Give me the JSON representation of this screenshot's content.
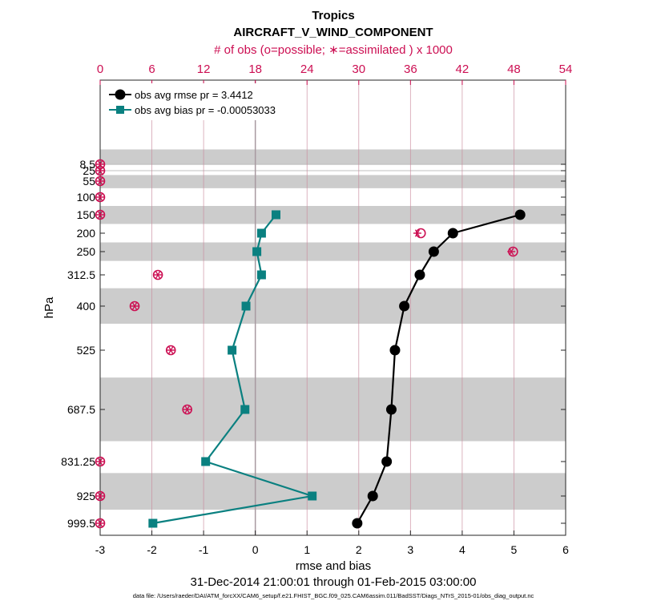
{
  "chart_data": {
    "type": "line",
    "title": "Tropics",
    "subtitle": "AIRCRAFT_V_WIND_COMPONENT",
    "top_axis_label": "# of obs (o=possible; ∗=assimilated ) x 1000",
    "top_ticks": [
      0,
      6,
      12,
      18,
      24,
      30,
      36,
      42,
      48,
      54
    ],
    "top_lim": [
      0,
      54
    ],
    "xlabel": "rmse and bias",
    "ylabel": "hPa",
    "xlim": [
      -3,
      6
    ],
    "x_ticks": [
      -3,
      -2,
      -1,
      0,
      1,
      2,
      3,
      4,
      5,
      6
    ],
    "y_scale": "categorical-pressure",
    "y_levels": [
      8.5,
      25,
      55,
      100,
      150,
      200,
      250,
      312.5,
      400,
      525,
      687.5,
      831.25,
      925,
      999.5
    ],
    "y_tick_labels": [
      "8.5",
      "25",
      "55",
      "100",
      "150",
      "200",
      "250",
      "312.5",
      "400",
      "525",
      "687.5",
      "831.25",
      "925",
      "999.5"
    ],
    "date_range": "31-Dec-2014 21:00:01 through 01-Feb-2015 03:00:00",
    "footer": "data file: /Users/raeder/DAI/ATM_forcXX/CAM6_setup/f.e21.FHIST_BGC.f09_025.CAM6assim.011/BadSST/Diags_NTrS_2015-01/obs_diag_output.nc",
    "legend_position": "top-left",
    "series": [
      {
        "name": "obs avg rmse pr = 3.4412",
        "color": "#000000",
        "marker": "circle",
        "points": [
          {
            "p": 150,
            "x": 5.12
          },
          {
            "p": 200,
            "x": 3.82
          },
          {
            "p": 250,
            "x": 3.45
          },
          {
            "p": 312.5,
            "x": 3.18
          },
          {
            "p": 400,
            "x": 2.88
          },
          {
            "p": 525,
            "x": 2.7
          },
          {
            "p": 687.5,
            "x": 2.63
          },
          {
            "p": 831.25,
            "x": 2.54
          },
          {
            "p": 925,
            "x": 2.27
          },
          {
            "p": 999.5,
            "x": 1.97
          }
        ]
      },
      {
        "name": "obs avg bias pr = -0.00053033",
        "color": "#0a8080",
        "marker": "square",
        "points": [
          {
            "p": 150,
            "x": 0.4
          },
          {
            "p": 200,
            "x": 0.12
          },
          {
            "p": 250,
            "x": 0.03
          },
          {
            "p": 312.5,
            "x": 0.12
          },
          {
            "p": 400,
            "x": -0.18
          },
          {
            "p": 525,
            "x": -0.45
          },
          {
            "p": 687.5,
            "x": -0.2
          },
          {
            "p": 831.25,
            "x": -0.96
          },
          {
            "p": 925,
            "x": 1.1
          },
          {
            "p": 999.5,
            "x": -1.98
          }
        ]
      }
    ],
    "obs_counts": {
      "color": "#cc0e52",
      "possible": [
        {
          "p": 8.5,
          "n": 0
        },
        {
          "p": 25,
          "n": 0
        },
        {
          "p": 55,
          "n": 0
        },
        {
          "p": 100,
          "n": 0
        },
        {
          "p": 150,
          "n": 0
        },
        {
          "p": 200,
          "n": 37.2
        },
        {
          "p": 250,
          "n": 47.9
        },
        {
          "p": 312.5,
          "n": 6.7
        },
        {
          "p": 400,
          "n": 4.0
        },
        {
          "p": 525,
          "n": 8.2
        },
        {
          "p": 687.5,
          "n": 10.1
        },
        {
          "p": 831.25,
          "n": 0
        },
        {
          "p": 925,
          "n": 0
        },
        {
          "p": 999.5,
          "n": 0
        }
      ],
      "assimilated": [
        {
          "p": 8.5,
          "n": 0
        },
        {
          "p": 25,
          "n": 0
        },
        {
          "p": 55,
          "n": 0
        },
        {
          "p": 100,
          "n": 0
        },
        {
          "p": 150,
          "n": 0
        },
        {
          "p": 200,
          "n": 36.8
        },
        {
          "p": 250,
          "n": 47.7
        },
        {
          "p": 312.5,
          "n": 6.7
        },
        {
          "p": 400,
          "n": 4.0
        },
        {
          "p": 525,
          "n": 8.2
        },
        {
          "p": 687.5,
          "n": 10.1
        },
        {
          "p": 831.25,
          "n": 0
        },
        {
          "p": 925,
          "n": 0
        },
        {
          "p": 999.5,
          "n": 0
        }
      ]
    },
    "pressure_bands_shaded": [
      [
        7,
        10
      ],
      [
        37.5,
        75
      ],
      [
        125,
        175
      ],
      [
        225,
        275
      ],
      [
        350,
        450
      ],
      [
        600,
        775
      ],
      [
        862.5,
        962.5
      ]
    ],
    "grid": true
  }
}
